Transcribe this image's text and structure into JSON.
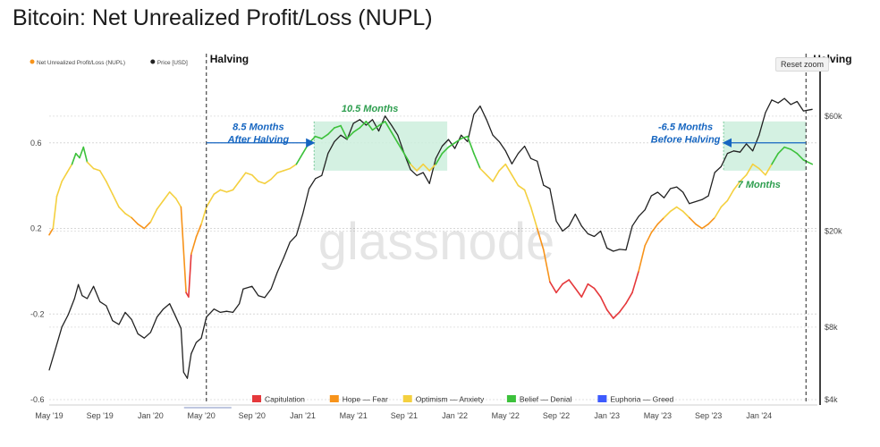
{
  "page_title": "Bitcoin: Net Unrealized Profit/Loss (NUPL)",
  "reset_zoom_label": "Reset zoom",
  "watermark": "glassnode",
  "colors": {
    "nupl": "#f7931a",
    "price": "#222222",
    "capitulation": "#e5383b",
    "hope_fear": "#f7931a",
    "optimism_anxiety": "#f4d03f",
    "belief_denial": "#3cc13b",
    "euphoria_greed": "#3d5afe",
    "annotation_blue": "#1565c0",
    "annotation_green": "#2e9e4f",
    "highlight": "#cdeedd"
  },
  "chart_data": {
    "type": "line",
    "title": "Bitcoin: Net Unrealized Profit/Loss (NUPL)",
    "x_tick_labels": [
      "May '19",
      "Sep '19",
      "Jan '20",
      "May '20",
      "Sep '20",
      "Jan '21",
      "May '21",
      "Sep '21",
      "Jan '22",
      "May '22",
      "Sep '22",
      "Jan '23",
      "May '23",
      "Sep '23",
      "Jan '24"
    ],
    "x_tick_months": [
      0,
      4,
      8,
      12,
      16,
      20,
      24,
      28,
      32,
      36,
      40,
      44,
      48,
      52,
      56
    ],
    "x_range_months": [
      0,
      60.6
    ],
    "y_left": {
      "ticks": [
        -0.6,
        -0.2,
        0.2,
        0.6
      ],
      "tick_labels": [
        "-0.6",
        "-0.2",
        "0.2",
        "0.6"
      ],
      "range": [
        -0.6,
        0.95
      ]
    },
    "y_right": {
      "scale": "log",
      "ticks": [
        4000,
        8000,
        20000,
        60000
      ],
      "tick_labels": [
        "$4k",
        "$8k",
        "$20k",
        "$60k"
      ],
      "range": [
        4000,
        95000
      ]
    },
    "legend_top": [
      {
        "name": "Net Unrealized Profit/Loss (NUPL)",
        "color": "#f7931a"
      },
      {
        "name": "Price [USD]",
        "color": "#222222"
      }
    ],
    "legend_bottom": [
      {
        "name": "Capitulation",
        "color": "#e5383b"
      },
      {
        "name": "Hope — Fear",
        "color": "#f7931a"
      },
      {
        "name": "Optimism — Anxiety",
        "color": "#f4d03f"
      },
      {
        "name": "Belief — Denial",
        "color": "#3cc13b"
      },
      {
        "name": "Euphoria — Greed",
        "color": "#3d5afe"
      }
    ],
    "halvings": [
      {
        "month": 12.4,
        "label": "Halving"
      },
      {
        "month": 59.7,
        "label": "Halving"
      }
    ],
    "highlights": [
      {
        "from_month": 20.9,
        "to_month": 31.4,
        "nupl_top": 0.7,
        "nupl_bottom": 0.47
      },
      {
        "from_month": 53.2,
        "to_month": 59.7,
        "nupl_top": 0.7,
        "nupl_bottom": 0.47
      }
    ],
    "annotations": [
      {
        "lines": [
          "8.5 Months",
          "After Halving"
        ],
        "color": "#1565c0",
        "arrow": {
          "from_month": 12.4,
          "to_month": 20.9,
          "nupl": 0.6
        },
        "text_month": 16.5,
        "text_nupl": 0.66
      },
      {
        "lines": [
          "10.5 Months"
        ],
        "color": "#2e9e4f",
        "text_month": 25.3,
        "text_nupl": 0.745
      },
      {
        "lines": [
          "-6.5 Months",
          "Before Halving"
        ],
        "color": "#1565c0",
        "arrow": {
          "from_month": 59.7,
          "to_month": 53.2,
          "nupl": 0.6
        },
        "text_month": 50.2,
        "text_nupl": 0.66
      },
      {
        "lines": [
          "7 Months"
        ],
        "color": "#2e9e4f",
        "text_month": 56.0,
        "text_nupl": 0.39
      }
    ],
    "series": [
      {
        "name": "Net Unrealized Profit/Loss (NUPL)",
        "points": [
          [
            0.0,
            0.17
          ],
          [
            0.3,
            0.2
          ],
          [
            0.6,
            0.35
          ],
          [
            1.0,
            0.42
          ],
          [
            1.4,
            0.46
          ],
          [
            1.8,
            0.5
          ],
          [
            2.1,
            0.55
          ],
          [
            2.4,
            0.53
          ],
          [
            2.7,
            0.58
          ],
          [
            3.0,
            0.51
          ],
          [
            3.5,
            0.48
          ],
          [
            4.0,
            0.47
          ],
          [
            4.5,
            0.42
          ],
          [
            5.0,
            0.36
          ],
          [
            5.5,
            0.3
          ],
          [
            6.0,
            0.27
          ],
          [
            6.5,
            0.25
          ],
          [
            7.0,
            0.22
          ],
          [
            7.5,
            0.2
          ],
          [
            8.0,
            0.23
          ],
          [
            8.5,
            0.29
          ],
          [
            9.0,
            0.33
          ],
          [
            9.5,
            0.37
          ],
          [
            10.0,
            0.34
          ],
          [
            10.4,
            0.3
          ],
          [
            10.8,
            -0.1
          ],
          [
            11.0,
            -0.12
          ],
          [
            11.2,
            0.08
          ],
          [
            11.6,
            0.16
          ],
          [
            12.0,
            0.22
          ],
          [
            12.4,
            0.3
          ],
          [
            13.0,
            0.36
          ],
          [
            13.5,
            0.38
          ],
          [
            14.0,
            0.37
          ],
          [
            14.5,
            0.38
          ],
          [
            15.0,
            0.42
          ],
          [
            15.5,
            0.46
          ],
          [
            16.0,
            0.45
          ],
          [
            16.5,
            0.42
          ],
          [
            17.0,
            0.41
          ],
          [
            17.5,
            0.43
          ],
          [
            18.0,
            0.46
          ],
          [
            18.5,
            0.47
          ],
          [
            19.0,
            0.48
          ],
          [
            19.5,
            0.5
          ],
          [
            20.0,
            0.55
          ],
          [
            20.5,
            0.6
          ],
          [
            21.0,
            0.63
          ],
          [
            21.5,
            0.62
          ],
          [
            22.0,
            0.64
          ],
          [
            22.5,
            0.67
          ],
          [
            23.0,
            0.68
          ],
          [
            23.5,
            0.62
          ],
          [
            24.0,
            0.65
          ],
          [
            24.5,
            0.67
          ],
          [
            25.0,
            0.7
          ],
          [
            25.5,
            0.66
          ],
          [
            26.0,
            0.68
          ],
          [
            26.5,
            0.7
          ],
          [
            27.0,
            0.65
          ],
          [
            27.5,
            0.6
          ],
          [
            28.0,
            0.55
          ],
          [
            28.5,
            0.5
          ],
          [
            29.0,
            0.47
          ],
          [
            29.5,
            0.5
          ],
          [
            30.0,
            0.47
          ],
          [
            30.5,
            0.5
          ],
          [
            31.0,
            0.55
          ],
          [
            31.5,
            0.58
          ],
          [
            32.0,
            0.6
          ],
          [
            32.5,
            0.62
          ],
          [
            33.0,
            0.63
          ],
          [
            33.5,
            0.55
          ],
          [
            34.0,
            0.48
          ],
          [
            34.5,
            0.45
          ],
          [
            35.0,
            0.42
          ],
          [
            35.5,
            0.47
          ],
          [
            36.0,
            0.5
          ],
          [
            36.5,
            0.45
          ],
          [
            37.0,
            0.4
          ],
          [
            37.5,
            0.38
          ],
          [
            38.0,
            0.3
          ],
          [
            38.5,
            0.2
          ],
          [
            39.0,
            0.1
          ],
          [
            39.5,
            -0.05
          ],
          [
            40.0,
            -0.1
          ],
          [
            40.5,
            -0.06
          ],
          [
            41.0,
            -0.04
          ],
          [
            41.5,
            -0.08
          ],
          [
            42.0,
            -0.12
          ],
          [
            42.5,
            -0.06
          ],
          [
            43.0,
            -0.08
          ],
          [
            43.5,
            -0.12
          ],
          [
            44.0,
            -0.18
          ],
          [
            44.5,
            -0.22
          ],
          [
            45.0,
            -0.19
          ],
          [
            45.5,
            -0.15
          ],
          [
            46.0,
            -0.1
          ],
          [
            46.5,
            0.0
          ],
          [
            47.0,
            0.12
          ],
          [
            47.5,
            0.18
          ],
          [
            48.0,
            0.22
          ],
          [
            48.5,
            0.25
          ],
          [
            49.0,
            0.28
          ],
          [
            49.5,
            0.3
          ],
          [
            50.0,
            0.28
          ],
          [
            50.5,
            0.25
          ],
          [
            51.0,
            0.22
          ],
          [
            51.5,
            0.2
          ],
          [
            52.0,
            0.22
          ],
          [
            52.5,
            0.25
          ],
          [
            53.0,
            0.3
          ],
          [
            53.5,
            0.33
          ],
          [
            54.0,
            0.38
          ],
          [
            54.5,
            0.42
          ],
          [
            55.0,
            0.45
          ],
          [
            55.5,
            0.5
          ],
          [
            56.0,
            0.48
          ],
          [
            56.5,
            0.45
          ],
          [
            57.0,
            0.5
          ],
          [
            57.5,
            0.55
          ],
          [
            58.0,
            0.58
          ],
          [
            58.5,
            0.57
          ],
          [
            59.0,
            0.55
          ],
          [
            59.5,
            0.52
          ],
          [
            60.2,
            0.5
          ]
        ]
      },
      {
        "name": "Price [USD]",
        "points": [
          [
            0.0,
            5300
          ],
          [
            0.5,
            6500
          ],
          [
            1.0,
            8000
          ],
          [
            1.5,
            9000
          ],
          [
            2.0,
            10500
          ],
          [
            2.3,
            12000
          ],
          [
            2.6,
            10800
          ],
          [
            3.0,
            10500
          ],
          [
            3.5,
            11800
          ],
          [
            4.0,
            10200
          ],
          [
            4.5,
            9800
          ],
          [
            5.0,
            8500
          ],
          [
            5.5,
            8200
          ],
          [
            6.0,
            9200
          ],
          [
            6.5,
            8600
          ],
          [
            7.0,
            7500
          ],
          [
            7.5,
            7200
          ],
          [
            8.0,
            7600
          ],
          [
            8.5,
            8800
          ],
          [
            9.0,
            9500
          ],
          [
            9.5,
            10000
          ],
          [
            10.0,
            8800
          ],
          [
            10.4,
            7900
          ],
          [
            10.6,
            5200
          ],
          [
            10.9,
            4900
          ],
          [
            11.2,
            6200
          ],
          [
            11.6,
            6900
          ],
          [
            12.0,
            7200
          ],
          [
            12.4,
            8800
          ],
          [
            13.0,
            9500
          ],
          [
            13.5,
            9200
          ],
          [
            14.0,
            9300
          ],
          [
            14.5,
            9200
          ],
          [
            15.0,
            10000
          ],
          [
            15.3,
            11500
          ],
          [
            16.0,
            11800
          ],
          [
            16.5,
            10800
          ],
          [
            17.0,
            10600
          ],
          [
            17.5,
            11500
          ],
          [
            18.0,
            13500
          ],
          [
            18.5,
            15500
          ],
          [
            19.0,
            18000
          ],
          [
            19.5,
            19200
          ],
          [
            20.0,
            23500
          ],
          [
            20.5,
            30000
          ],
          [
            21.0,
            33000
          ],
          [
            21.5,
            34000
          ],
          [
            22.0,
            42000
          ],
          [
            22.5,
            47000
          ],
          [
            23.0,
            50000
          ],
          [
            23.5,
            48000
          ],
          [
            24.0,
            56000
          ],
          [
            24.5,
            58000
          ],
          [
            25.0,
            55000
          ],
          [
            25.5,
            58000
          ],
          [
            26.0,
            52000
          ],
          [
            26.5,
            60000
          ],
          [
            27.0,
            55000
          ],
          [
            27.5,
            50000
          ],
          [
            28.0,
            42000
          ],
          [
            28.5,
            36000
          ],
          [
            29.0,
            34000
          ],
          [
            29.5,
            35000
          ],
          [
            30.0,
            31500
          ],
          [
            30.5,
            40000
          ],
          [
            31.0,
            45000
          ],
          [
            31.5,
            48000
          ],
          [
            32.0,
            44000
          ],
          [
            32.5,
            50000
          ],
          [
            33.0,
            47000
          ],
          [
            33.5,
            61000
          ],
          [
            34.0,
            66000
          ],
          [
            34.5,
            58000
          ],
          [
            35.0,
            50000
          ],
          [
            35.5,
            47000
          ],
          [
            36.0,
            43000
          ],
          [
            36.5,
            38000
          ],
          [
            37.0,
            42000
          ],
          [
            37.5,
            45000
          ],
          [
            38.0,
            40000
          ],
          [
            38.5,
            39000
          ],
          [
            39.0,
            31000
          ],
          [
            39.5,
            30000
          ],
          [
            40.0,
            22000
          ],
          [
            40.5,
            20000
          ],
          [
            41.0,
            21000
          ],
          [
            41.5,
            23500
          ],
          [
            42.0,
            21000
          ],
          [
            42.5,
            19500
          ],
          [
            43.0,
            19000
          ],
          [
            43.5,
            20000
          ],
          [
            44.0,
            17000
          ],
          [
            44.5,
            16500
          ],
          [
            45.0,
            16800
          ],
          [
            45.5,
            16700
          ],
          [
            46.0,
            21000
          ],
          [
            46.5,
            23000
          ],
          [
            47.0,
            24500
          ],
          [
            47.5,
            28000
          ],
          [
            48.0,
            29000
          ],
          [
            48.5,
            27500
          ],
          [
            49.0,
            30000
          ],
          [
            49.5,
            30500
          ],
          [
            50.0,
            29000
          ],
          [
            50.5,
            26000
          ],
          [
            51.0,
            26500
          ],
          [
            51.5,
            27000
          ],
          [
            52.0,
            28000
          ],
          [
            52.5,
            35000
          ],
          [
            53.0,
            37000
          ],
          [
            53.5,
            42000
          ],
          [
            54.0,
            43000
          ],
          [
            54.5,
            42500
          ],
          [
            55.0,
            46000
          ],
          [
            55.5,
            43000
          ],
          [
            56.0,
            50000
          ],
          [
            56.5,
            62000
          ],
          [
            57.0,
            70000
          ],
          [
            57.5,
            68000
          ],
          [
            58.0,
            71000
          ],
          [
            58.5,
            67000
          ],
          [
            59.0,
            69000
          ],
          [
            59.5,
            63000
          ],
          [
            60.2,
            64000
          ]
        ]
      }
    ]
  }
}
